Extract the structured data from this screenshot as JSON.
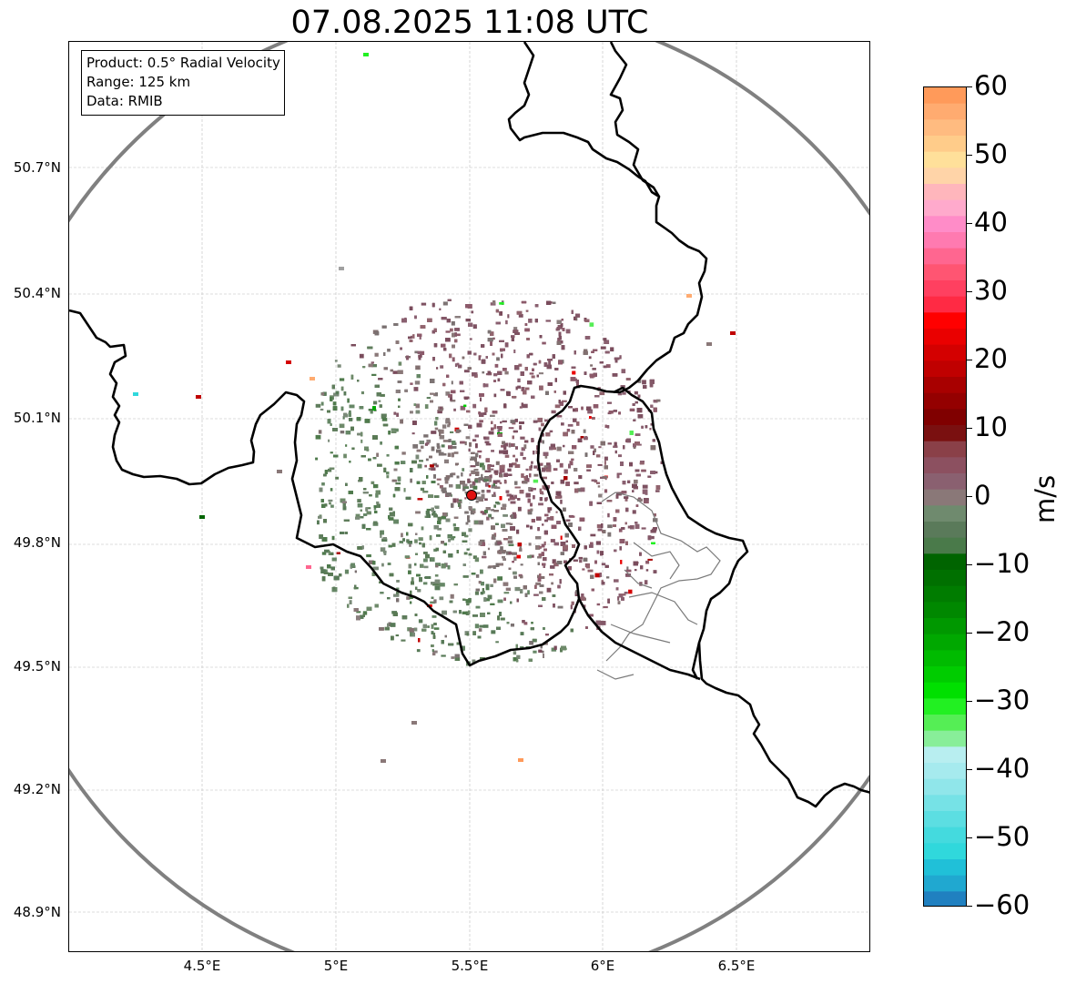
{
  "title": "07.08.2025 11:08 UTC",
  "info": {
    "product": "Product: 0.5° Radial Velocity",
    "range": "Range: 125 km",
    "data": "Data: RMIB"
  },
  "axes": {
    "lat_ticks": [
      "50.7°N",
      "50.4°N",
      "50.1°N",
      "49.8°N",
      "49.5°N",
      "49.2°N",
      "48.9°N"
    ],
    "lon_ticks": [
      "4.5°E",
      "5°E",
      "5.5°E",
      "6°E",
      "6.5°E"
    ]
  },
  "colorbar": {
    "unit": "m/s",
    "ticks": [
      "60",
      "50",
      "40",
      "30",
      "20",
      "10",
      "0",
      "−10",
      "−20",
      "−30",
      "−40",
      "−50",
      "−60"
    ],
    "range": [
      -60,
      60
    ],
    "colors": [
      "#ff9a5a",
      "#ffab70",
      "#ffbb80",
      "#ffcc8a",
      "#ffe09a",
      "#ffd4a8",
      "#ffb6bc",
      "#ffaacc",
      "#ff8cc8",
      "#ff7ab0",
      "#ff6690",
      "#ff5572",
      "#ff4060",
      "#ff2a44",
      "#ff0000",
      "#ea0000",
      "#d40000",
      "#c00000",
      "#a80000",
      "#940000",
      "#800000",
      "#7a1010",
      "#8a4048",
      "#8c5060",
      "#8a6070",
      "#8a7878",
      "#6f8a6e",
      "#5a7a5a",
      "#4a7a4a",
      "#006400",
      "#007000",
      "#007c00",
      "#008800",
      "#009800",
      "#00a800",
      "#00bb00",
      "#00cc00",
      "#00e000",
      "#22f022",
      "#55ee55",
      "#88ee99",
      "#b8eef0",
      "#a6eaee",
      "#90e6ea",
      "#76e2e6",
      "#5cdee2",
      "#44dade",
      "#30d8dc",
      "#20c0d8",
      "#20a8d0",
      "#2080c0"
    ],
    "zero_color": "#8a7878"
  },
  "radar_site": {
    "label": "radar-site",
    "color": "#e01010"
  }
}
